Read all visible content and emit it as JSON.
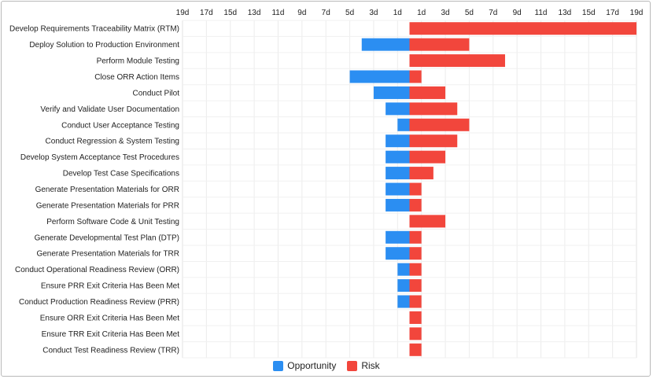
{
  "chart_data": {
    "type": "bar",
    "orientation": "horizontal",
    "stacked": true,
    "xlim": [
      -19,
      19
    ],
    "x_tick_labels": [
      "19d",
      "17d",
      "15d",
      "13d",
      "11d",
      "9d",
      "7d",
      "5d",
      "3d",
      "1d",
      "1d",
      "3d",
      "5d",
      "7d",
      "9d",
      "11d",
      "13d",
      "15d",
      "17d",
      "19d"
    ],
    "x_tick_values": [
      -19,
      -17,
      -15,
      -13,
      -11,
      -9,
      -7,
      -5,
      -3,
      -1,
      1,
      3,
      5,
      7,
      9,
      11,
      13,
      15,
      17,
      19
    ],
    "grid": true,
    "legend_position": "bottom",
    "categories": [
      "Develop Requirements Traceability Matrix (RTM)",
      "Deploy Solution to Production Environment",
      "Perform Module Testing",
      "Close ORR Action Items",
      "Conduct Pilot",
      "Verify and Validate User Documentation",
      "Conduct User Acceptance Testing",
      "Conduct Regression & System Testing",
      "Develop System Acceptance Test Procedures",
      "Develop Test Case Specifications",
      "Generate Presentation Materials for ORR",
      "Generate Presentation Materials for PRR",
      "Perform Software Code & Unit Testing",
      "Generate Developmental Test Plan (DTP)",
      "Generate Presentation Materials for TRR",
      "Conduct Operational Readiness Review (ORR)",
      "Ensure PRR Exit Criteria Has Been Met",
      "Conduct Production Readiness Review (PRR)",
      "Ensure ORR Exit Criteria Has Been Met",
      "Ensure TRR Exit Criteria Has Been Met",
      "Conduct Test Readiness Review (TRR)"
    ],
    "series": [
      {
        "name": "Opportunity",
        "color": "#2b8ef2",
        "values": [
          0,
          -4,
          0,
          -5,
          -3,
          -2,
          -1,
          -2,
          -2,
          -2,
          -2,
          -2,
          0,
          -2,
          -2,
          -1,
          -1,
          -1,
          0,
          0,
          0
        ]
      },
      {
        "name": "Risk",
        "color": "#f2463c",
        "values": [
          19,
          5,
          8,
          1,
          3,
          4,
          5,
          4,
          3,
          2,
          1,
          1,
          3,
          1,
          1,
          1,
          1,
          1,
          1,
          1,
          1
        ]
      }
    ]
  }
}
